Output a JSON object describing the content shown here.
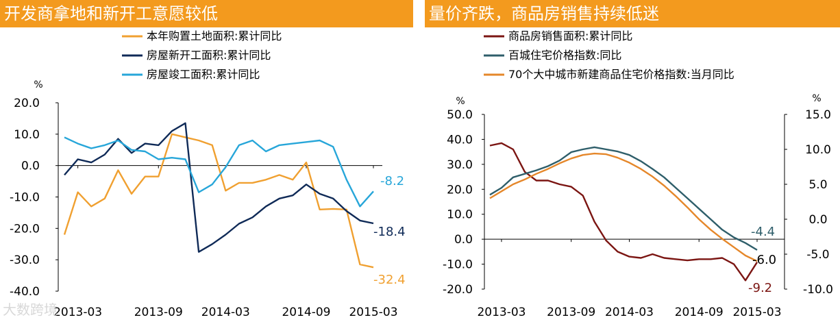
{
  "left_title": "开发商拿地和新开工意愿较低",
  "right_title": "量价齐跌，商品房销售持续低迷",
  "watermark": "大数跨境",
  "chart_data": [
    {
      "type": "line",
      "title": "开发商拿地和新开工意愿较低",
      "ylabel": "%",
      "ylim": [
        -40,
        20
      ],
      "yticks": [
        "20.0",
        "10.0",
        "0.0",
        "-10.0",
        "-20.0",
        "-30.0",
        "-40.0"
      ],
      "yticks_values": [
        20,
        10,
        0,
        -10,
        -20,
        -30,
        -40
      ],
      "x": [
        "2013-02",
        "2013-03",
        "2013-04",
        "2013-05",
        "2013-06",
        "2013-07",
        "2013-08",
        "2013-09",
        "2013-10",
        "2013-11",
        "2013-12",
        "2014-02",
        "2014-03",
        "2014-04",
        "2014-05",
        "2014-06",
        "2014-07",
        "2014-08",
        "2014-09",
        "2014-10",
        "2014-11",
        "2014-12",
        "2015-02",
        "2015-03"
      ],
      "xtick_labels": [
        "2013-03",
        "2013-09",
        "2014-03",
        "2014-09",
        "2015-03"
      ],
      "xtick_index": [
        1,
        7,
        12,
        18,
        23
      ],
      "series": [
        {
          "name": "本年购置土地面积:累计同比",
          "color": "#f0a030",
          "values": [
            -22,
            -8.5,
            -13,
            -10.5,
            -1.5,
            -9,
            -3.5,
            -3.5,
            10,
            9,
            8,
            6.5,
            -8,
            -5.5,
            -5.5,
            -4.5,
            -3,
            -4.5,
            1,
            -14,
            -13.8,
            -14,
            -31.5,
            -32.4
          ]
        },
        {
          "name": "房屋新开工面积:累计同比",
          "color": "#0f2a57",
          "values": [
            -3,
            2,
            1,
            3.5,
            8.5,
            4,
            7,
            6.5,
            11,
            13.5,
            -27.5,
            -25,
            -22,
            -18.5,
            -16.5,
            -13,
            -10.5,
            -9.5,
            -6,
            -9,
            -10.5,
            -14.5,
            -17.5,
            -18.4
          ]
        },
        {
          "name": "房屋竣工面积:累计同比",
          "color": "#27a6d9",
          "values": [
            9,
            7,
            5.5,
            6.5,
            8,
            5,
            4.5,
            2,
            2.5,
            2,
            -8.5,
            -6,
            -0.5,
            6.5,
            8,
            4.5,
            6.5,
            7,
            7.5,
            8,
            6,
            -4.5,
            -13,
            -8.2
          ]
        }
      ],
      "end_labels": [
        "-8.2",
        "-18.4",
        "-32.4"
      ],
      "legend": "top"
    },
    {
      "type": "line",
      "title": "量价齐跌，商品房销售持续低迷",
      "ylabel": "%",
      "y2label": "%",
      "ylim": [
        -20,
        50
      ],
      "yticks": [
        "50.0",
        "40.0",
        "30.0",
        "20.0",
        "10.0",
        "0.0",
        "-10.0",
        "-20.0"
      ],
      "yticks_values": [
        50,
        40,
        30,
        20,
        10,
        0,
        -10,
        -20
      ],
      "y2lim": [
        -10,
        15
      ],
      "y2ticks": [
        "15.0",
        "10.0",
        "5.0",
        "0.0",
        "-5.0",
        "-10.0"
      ],
      "y2ticks_values": [
        15,
        10,
        5,
        0,
        -5,
        -10
      ],
      "x": [
        "2013-02",
        "2013-03",
        "2013-04",
        "2013-05",
        "2013-06",
        "2013-07",
        "2013-08",
        "2013-09",
        "2013-10",
        "2013-11",
        "2013-12",
        "2014-02",
        "2014-03",
        "2014-04",
        "2014-05",
        "2014-06",
        "2014-07",
        "2014-08",
        "2014-09",
        "2014-10",
        "2014-11",
        "2014-12",
        "2015-02",
        "2015-03"
      ],
      "xtick_labels": [
        "2013-03",
        "2013-09",
        "2014-03",
        "2014-09",
        "2015-03"
      ],
      "xtick_index": [
        1,
        7,
        12,
        18,
        23
      ],
      "series": [
        {
          "name": "商品房销售面积:累计同比",
          "color": "#7b1512",
          "axis": "left",
          "values": [
            37.5,
            38.5,
            36,
            27,
            23.5,
            23.5,
            22,
            21,
            17.5,
            7,
            -0.5,
            -5,
            -7,
            -7.5,
            -6,
            -7.5,
            -8,
            -8.5,
            -8,
            -8,
            -7.5,
            -10,
            -16.5,
            -9.2
          ]
        },
        {
          "name": "百城住宅价格指数:同比",
          "color": "#2e5e6a",
          "axis": "right",
          "values": [
            3.5,
            4.5,
            6,
            6.5,
            7,
            7.6,
            8.4,
            9.6,
            10,
            10.3,
            10,
            9.7,
            9.2,
            8.3,
            7.2,
            6,
            4.5,
            3,
            1.5,
            0,
            -1.5,
            -2.6,
            -3.4,
            -4.4
          ]
        },
        {
          "name": "70个大中城市新建商品住宅价格指数:当月同比",
          "color": "#e5872a",
          "axis": "right",
          "values": [
            3,
            4,
            5,
            5.7,
            6.5,
            7.2,
            8,
            8.7,
            9.2,
            9.4,
            9.3,
            8.8,
            8.1,
            7.2,
            6.1,
            4.8,
            3.3,
            1.7,
            0,
            -1.5,
            -2.8,
            -4,
            -5.2,
            -6
          ]
        }
      ],
      "end_labels": [
        "-4.4",
        "-6.0",
        "-9.2"
      ],
      "legend": "top"
    }
  ]
}
